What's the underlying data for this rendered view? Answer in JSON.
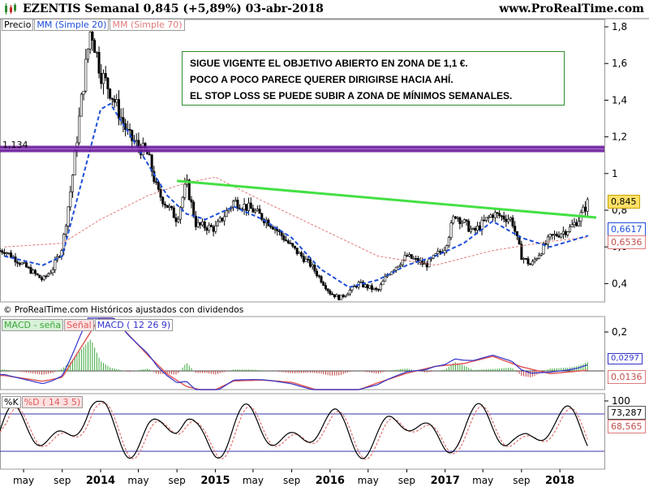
{
  "header": {
    "title": "EZENTIS   Semanal   0,845 (+5,89%)   03-abr-2018",
    "site": "www.ProRealTime.com"
  },
  "legend_price": {
    "precio": "Precio",
    "ma20": "MM (Simple 20)",
    "ma70": "MM (Simple 70)"
  },
  "legend_macd": {
    "hist": "MACD - seña",
    "signal": "Señal",
    "macd": "MACD ( 12 26 9)"
  },
  "legend_stoch": {
    "k": "%K",
    "d": "%D ( 14 3 5)"
  },
  "annotation": {
    "lines": [
      "SIGUE VIGENTE EL OBJETIVO ABIERTO EN ZONA DE 1,1 €.",
      "POCO A POCO PARECE QUERER DIRIGIRSE HACIA AHÍ.",
      "EL STOP LOSS SE PUEDE SUBIR A ZONA DE MÍNIMOS SEMANALES."
    ]
  },
  "copyright": "© ProRealTime.com  Históricos ajustados con dividendos",
  "level_label": "1,134",
  "value_tags": {
    "price": "0,845",
    "ma20": "0,6617",
    "ma70": "0,6536",
    "macd_a": "0,0297",
    "macd_b": "0,0136",
    "stoch_a": "73,287",
    "stoch_b": "68,565"
  },
  "colors": {
    "price": "#000000",
    "ma20": "#1f4fd8",
    "ma70": "#e07a7a",
    "resistance": "#6a1b9a",
    "trendline": "#44e044",
    "macd": "#3333cc",
    "signal": "#e05a5a",
    "hist": "#3aa83a"
  },
  "chart_data": [
    {
      "type": "candlestick",
      "title": "EZENTIS Semanal",
      "yticks": [
        "0,4",
        "0,6",
        "0,8",
        "1",
        "1,2",
        "1,4",
        "1,6",
        "1,8"
      ],
      "ytick_values": [
        0.4,
        0.6,
        0.8,
        1.0,
        1.2,
        1.4,
        1.6,
        1.8
      ],
      "ylim": [
        0.3,
        1.84
      ],
      "xticks": [
        "may",
        "sep",
        "2014",
        "may",
        "sep",
        "2015",
        "may",
        "sep",
        "2016",
        "may",
        "sep",
        "2017",
        "may",
        "sep",
        "2018"
      ],
      "x_range": [
        "2013-03",
        "2018-04"
      ],
      "price_points": [
        [
          "2013-03",
          0.58
        ],
        [
          "2013-05",
          0.5
        ],
        [
          "2013-07",
          0.42
        ],
        [
          "2013-08",
          0.48
        ],
        [
          "2013-09",
          0.6
        ],
        [
          "2013-10",
          0.95
        ],
        [
          "2013-11",
          1.4
        ],
        [
          "2013-12",
          1.8
        ],
        [
          "2014-01",
          1.55
        ],
        [
          "2014-02",
          1.45
        ],
        [
          "2014-04",
          1.2
        ],
        [
          "2014-06",
          1.1
        ],
        [
          "2014-07",
          0.9
        ],
        [
          "2014-09",
          0.75
        ],
        [
          "2014-10",
          0.95
        ],
        [
          "2014-11",
          0.72
        ],
        [
          "2015-01",
          0.7
        ],
        [
          "2015-03",
          0.85
        ],
        [
          "2015-05",
          0.8
        ],
        [
          "2015-07",
          0.72
        ],
        [
          "2015-09",
          0.6
        ],
        [
          "2015-11",
          0.5
        ],
        [
          "2016-01",
          0.35
        ],
        [
          "2016-02",
          0.32
        ],
        [
          "2016-04",
          0.4
        ],
        [
          "2016-06",
          0.36
        ],
        [
          "2016-07",
          0.45
        ],
        [
          "2016-09",
          0.55
        ],
        [
          "2016-11",
          0.5
        ],
        [
          "2017-01",
          0.6
        ],
        [
          "2017-02",
          0.78
        ],
        [
          "2017-04",
          0.68
        ],
        [
          "2017-06",
          0.78
        ],
        [
          "2017-08",
          0.75
        ],
        [
          "2017-09",
          0.55
        ],
        [
          "2017-10",
          0.5
        ],
        [
          "2017-12",
          0.65
        ],
        [
          "2018-02",
          0.7
        ],
        [
          "2018-03",
          0.75
        ],
        [
          "2018-04",
          0.845
        ]
      ],
      "ma20_points": [
        [
          "2013-03",
          0.55
        ],
        [
          "2013-07",
          0.5
        ],
        [
          "2013-09",
          0.55
        ],
        [
          "2013-11",
          0.95
        ],
        [
          "2014-01",
          1.35
        ],
        [
          "2014-02",
          1.38
        ],
        [
          "2014-04",
          1.22
        ],
        [
          "2014-06",
          1.05
        ],
        [
          "2014-08",
          0.88
        ],
        [
          "2014-10",
          0.78
        ],
        [
          "2014-12",
          0.75
        ],
        [
          "2015-03",
          0.82
        ],
        [
          "2015-06",
          0.75
        ],
        [
          "2015-09",
          0.65
        ],
        [
          "2015-12",
          0.48
        ],
        [
          "2016-03",
          0.38
        ],
        [
          "2016-06",
          0.42
        ],
        [
          "2016-09",
          0.5
        ],
        [
          "2016-12",
          0.55
        ],
        [
          "2017-03",
          0.62
        ],
        [
          "2017-06",
          0.74
        ],
        [
          "2017-09",
          0.65
        ],
        [
          "2017-12",
          0.6
        ],
        [
          "2018-04",
          0.6617
        ]
      ],
      "ma70_points": [
        [
          "2013-03",
          0.6
        ],
        [
          "2013-09",
          0.62
        ],
        [
          "2014-01",
          0.75
        ],
        [
          "2014-06",
          0.88
        ],
        [
          "2014-10",
          0.95
        ],
        [
          "2015-01",
          0.98
        ],
        [
          "2015-06",
          0.85
        ],
        [
          "2015-12",
          0.7
        ],
        [
          "2016-06",
          0.55
        ],
        [
          "2016-12",
          0.5
        ],
        [
          "2017-06",
          0.58
        ],
        [
          "2017-12",
          0.63
        ],
        [
          "2018-04",
          0.6536
        ]
      ],
      "resistance_level": 1.134,
      "trendline": [
        [
          "2014-09",
          0.96
        ],
        [
          "2018-04",
          0.76
        ]
      ]
    },
    {
      "type": "line",
      "title": "MACD ( 12 26 9)",
      "yticks": [
        "0,2"
      ],
      "series": [
        "MACD",
        "Señal",
        "MACD - seña"
      ]
    },
    {
      "type": "line",
      "title": "%D ( 14 3 5)",
      "yticks": [
        "100"
      ],
      "series": [
        "%K",
        "%D"
      ]
    }
  ]
}
